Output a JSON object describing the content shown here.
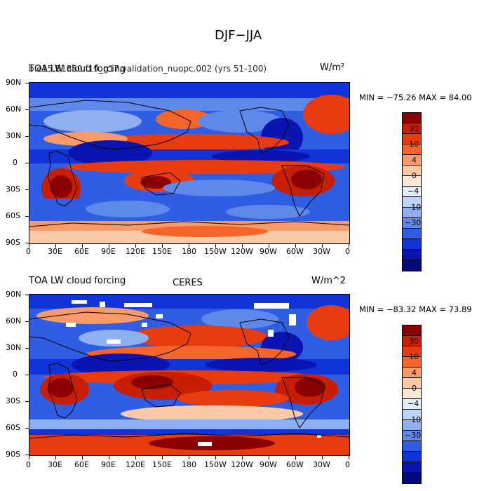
{
  "title": "DJF−JJA",
  "panels": [
    {
      "left_title_a": "TOA LW cloud forcing",
      "left_title_b": "b.e15.B1850.f19_g17.validation_nuopc.002 (yrs 51-100)",
      "center_title": "",
      "units": "W/m²",
      "minmax": "MIN = −75.26  MAX =  84.00"
    },
    {
      "left_title_a": "TOA LW cloud forcing",
      "left_title_b": "",
      "center_title": "CERES",
      "units": "W/m^2",
      "minmax": "MIN = −83.32  MAX =  73.89"
    }
  ],
  "lat_labels": [
    "90N",
    "60N",
    "30N",
    "0",
    "30S",
    "60S",
    "90S"
  ],
  "lon_labels": [
    "0",
    "30E",
    "60E",
    "90E",
    "120E",
    "150E",
    "180",
    "150W",
    "120W",
    "90W",
    "60W",
    "30W",
    "0"
  ],
  "colorbar": {
    "labels": [
      "30",
      "10",
      "4",
      "0",
      "−4",
      "−10",
      "−30"
    ],
    "colors": [
      "#8b0000",
      "#c81e00",
      "#e83c10",
      "#f5652a",
      "#f89a6a",
      "#fbc9a6",
      "#fde8d6",
      "#e2ecfb",
      "#bdd3f7",
      "#8fb0f0",
      "#5e89ea",
      "#2f5ee4",
      "#1034d8",
      "#0a14b0",
      "#050a7a"
    ]
  }
}
